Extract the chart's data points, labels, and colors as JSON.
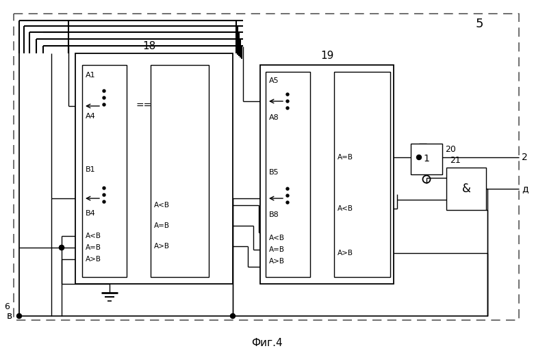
{
  "title": "Фиг.4",
  "label_5": "5",
  "label_6": "6",
  "label_18": "18",
  "label_19": "19",
  "label_20": "20",
  "label_21": "21",
  "label_2": "2",
  "label_d": "д",
  "label_v": "в",
  "bg_color": "#ffffff"
}
